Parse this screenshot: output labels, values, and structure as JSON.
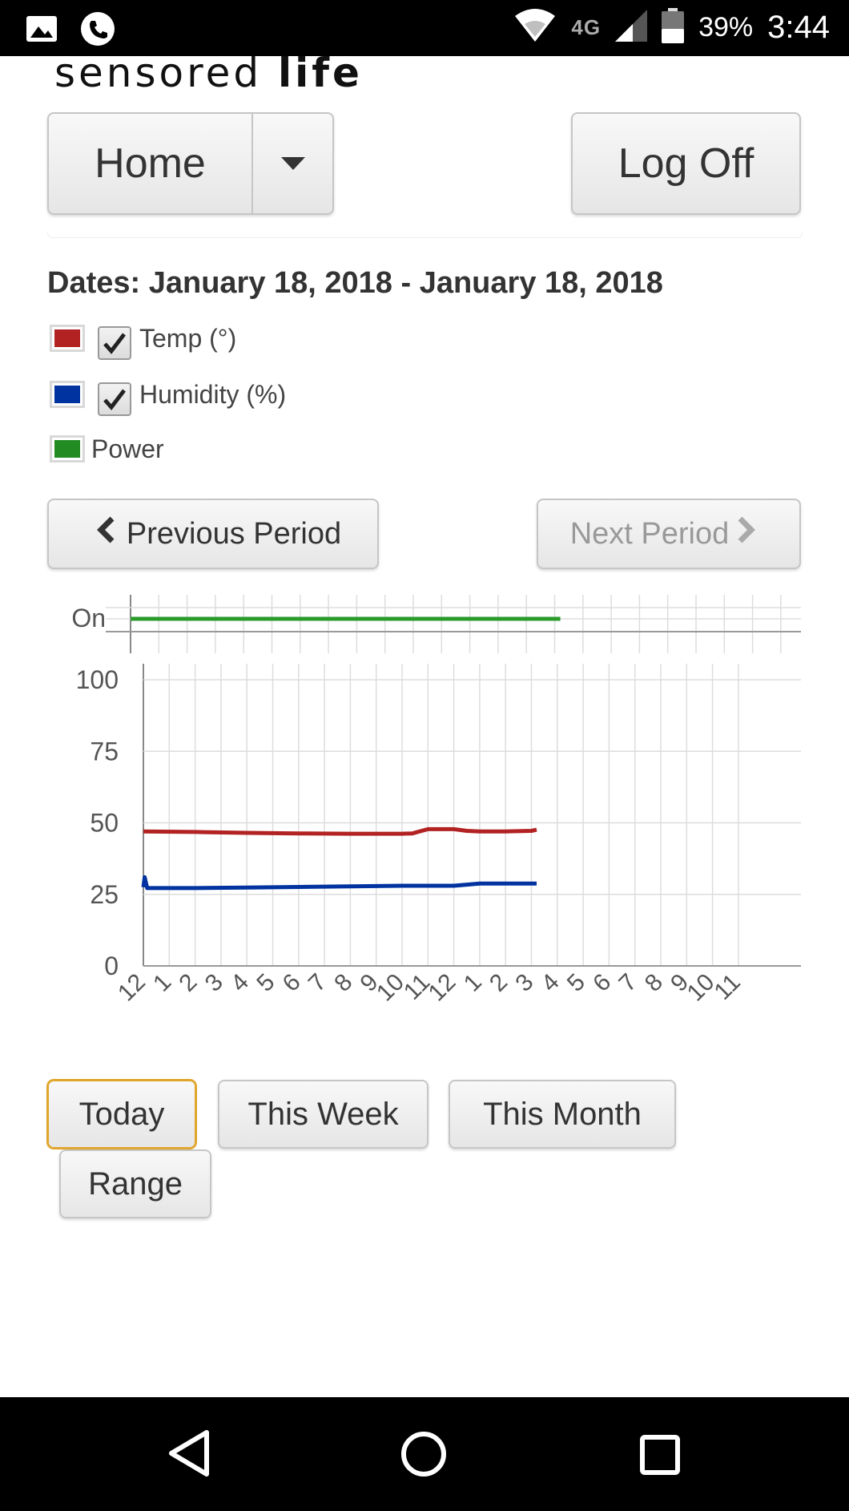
{
  "status_bar": {
    "time": "3:44",
    "battery_percent": "39%",
    "network": "4G",
    "icons": [
      "gallery-icon",
      "phone-call-icon",
      "wifi-icon",
      "signal-icon",
      "battery-icon"
    ]
  },
  "header": {
    "logo_text_a": "sensored ",
    "logo_text_b": "life",
    "home_label": "Home",
    "logoff_label": "Log Off"
  },
  "dates_label": "Dates: January 18, 2018 - January 18, 2018",
  "legend": [
    {
      "label": "Temp (°)",
      "color": "#b22222",
      "checked": true
    },
    {
      "label": "Humidity (%)",
      "color": "#0033a0",
      "checked": true
    },
    {
      "label": "Power",
      "color": "#228b22",
      "checked": false
    }
  ],
  "nav": {
    "prev_label": "Previous Period",
    "next_label": "Next Period"
  },
  "chart_data": [
    {
      "type": "line",
      "ylabel": "",
      "y_categories": [
        "On"
      ],
      "series": [
        {
          "name": "Power",
          "color": "#2a9a2a",
          "x": [
            0,
            15.2
          ],
          "y": [
            "On",
            "On"
          ]
        }
      ],
      "xlim": [
        0,
        24
      ]
    },
    {
      "type": "line",
      "x_tick_labels": [
        "12",
        "1",
        "2",
        "3",
        "4",
        "5",
        "6",
        "7",
        "8",
        "9",
        "10",
        "11",
        "12",
        "1",
        "2",
        "3",
        "4",
        "5",
        "6",
        "7",
        "8",
        "9",
        "10",
        "11"
      ],
      "y_ticks": [
        0,
        25,
        50,
        75,
        100
      ],
      "ylim": [
        0,
        100
      ],
      "xlim": [
        0,
        24
      ],
      "grid": true,
      "series": [
        {
          "name": "Temp (°)",
          "color": "#b22222",
          "x": [
            0,
            2,
            4,
            6,
            8,
            10,
            10.4,
            11,
            12,
            12.5,
            13,
            14,
            15,
            15.2
          ],
          "y": [
            47,
            46.8,
            46.5,
            46.3,
            46.2,
            46.2,
            46.3,
            47.8,
            47.8,
            47.2,
            47.0,
            47.0,
            47.2,
            47.6
          ]
        },
        {
          "name": "Humidity (%)",
          "color": "#0033a0",
          "x": [
            0,
            0.05,
            0.15,
            2,
            4,
            6,
            8,
            10,
            12,
            13,
            14,
            15,
            15.2
          ],
          "y": [
            27.5,
            31,
            27.2,
            27.2,
            27.4,
            27.6,
            27.8,
            28,
            28,
            28.8,
            28.8,
            28.8,
            28.8
          ]
        }
      ]
    }
  ],
  "ranges": {
    "today": "Today",
    "week": "This Week",
    "month": "This Month",
    "range": "Range"
  }
}
